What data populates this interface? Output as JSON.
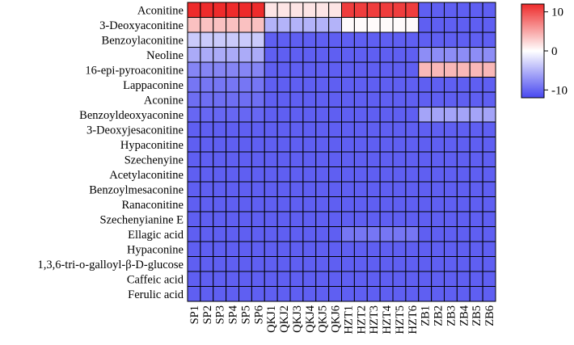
{
  "chart_data": {
    "type": "heatmap",
    "rows": [
      "Aconitine",
      "3-Deoxyaconitine",
      "Benzoylaconitine",
      "Neoline",
      "16-epi-pyroaconitine",
      "Lappaconine",
      "Aconine",
      "Benzoyldeoxyaconine",
      "3-Deoxyjesaconitine",
      "Hypaconitine",
      "Szechenyine",
      "Acetylaconitine",
      "Benzoylmesaconine",
      "Ranaconitine",
      "Szechenyianine E",
      "Ellagic acid",
      "Hypaconine",
      "1,3,6-tri-o-galloyl-β-D-glucose",
      "Caffeic acid",
      "Ferulic acid"
    ],
    "columns": [
      "SP1",
      "SP2",
      "SP3",
      "SP4",
      "SP5",
      "SP6",
      "QKJ1",
      "QKJ2",
      "QKJ3",
      "QKJ4",
      "QKJ5",
      "QKJ6",
      "HZT1",
      "HZT2",
      "HZT3",
      "HZT4",
      "HZT5",
      "HZT6",
      "ZB1",
      "ZB2",
      "ZB3",
      "ZB4",
      "ZB5",
      "ZB6"
    ],
    "values": [
      [
        12,
        12,
        12,
        12,
        12,
        12,
        1.5,
        1.5,
        1.5,
        1.5,
        1.5,
        1.5,
        11,
        11,
        11,
        11,
        11,
        11,
        -10.5,
        -10.5,
        -10.5,
        -10.5,
        -10.5,
        -10.5
      ],
      [
        3.5,
        3.5,
        3.5,
        3.5,
        3.5,
        3.5,
        -5,
        -5,
        -5,
        -5,
        -5,
        -5,
        0.2,
        0.2,
        0.2,
        0.2,
        0.2,
        0.2,
        -10.5,
        -10.5,
        -10.5,
        -10.5,
        -10.5,
        -10.5
      ],
      [
        -3.5,
        -3.5,
        -3.5,
        -3.5,
        -3.5,
        -3.5,
        -10.5,
        -10.5,
        -10.5,
        -10.5,
        -10.5,
        -10.5,
        -10.5,
        -10.5,
        -10.5,
        -10.5,
        -10.5,
        -10.5,
        -10.5,
        -10.5,
        -10.5,
        -10.5,
        -10.5,
        -10.5
      ],
      [
        -5.5,
        -5.5,
        -5.5,
        -5.5,
        -5.5,
        -5.5,
        -10.5,
        -10.5,
        -10.5,
        -10.5,
        -10.5,
        -10.5,
        -10.5,
        -10.5,
        -10.5,
        -10.5,
        -10.5,
        -10.5,
        -7.5,
        -7.5,
        -7.5,
        -7.5,
        -7.5,
        -7.5
      ],
      [
        -8,
        -8,
        -8,
        -8,
        -8,
        -8,
        -10.5,
        -10.5,
        -10.5,
        -10.5,
        -10.5,
        -10.5,
        -10.5,
        -10.5,
        -10.5,
        -10.5,
        -10.5,
        -10.5,
        4,
        4,
        4,
        4,
        4,
        4
      ],
      [
        -9,
        -9,
        -9,
        -9,
        -9,
        -9,
        -10.5,
        -10.5,
        -10.5,
        -10.5,
        -10.5,
        -10.5,
        -10.5,
        -10.5,
        -10.5,
        -10.5,
        -10.5,
        -10.5,
        -10.5,
        -10.5,
        -10.5,
        -10.5,
        -10.5,
        -10.5
      ],
      [
        -9.5,
        -9.5,
        -9.5,
        -9.5,
        -9.5,
        -9.5,
        -10.5,
        -10.5,
        -10.5,
        -10.5,
        -10.5,
        -10.5,
        -10.5,
        -10.5,
        -10.5,
        -10.5,
        -10.5,
        -10.5,
        -10.5,
        -10.5,
        -10.5,
        -10.5,
        -10.5,
        -10.5
      ],
      [
        -10,
        -10,
        -10,
        -10,
        -10,
        -10,
        -10.5,
        -10.5,
        -10.5,
        -10.5,
        -10.5,
        -10.5,
        -10.5,
        -10.5,
        -10.5,
        -10.5,
        -10.5,
        -10.5,
        -6,
        -6,
        -6,
        -6,
        -6,
        -6
      ],
      [
        -10.5,
        -10.5,
        -10.5,
        -10.5,
        -10.5,
        -10.5,
        -10.5,
        -10.5,
        -10.5,
        -10.5,
        -10.5,
        -10.5,
        -10.5,
        -10.5,
        -10.5,
        -10.5,
        -10.5,
        -10.5,
        -10.5,
        -10.5,
        -10.5,
        -10.5,
        -10.5,
        -10.5
      ],
      [
        -10.5,
        -10.5,
        -10.5,
        -10.5,
        -10.5,
        -10.5,
        -10.5,
        -10.5,
        -10.5,
        -10.5,
        -10.5,
        -10.5,
        -10.5,
        -10.5,
        -10.5,
        -10.5,
        -10.5,
        -10.5,
        -10.5,
        -10.5,
        -10.5,
        -10.5,
        -10.5,
        -10.5
      ],
      [
        -10.5,
        -10.5,
        -10.5,
        -10.5,
        -10.5,
        -10.5,
        -10.5,
        -10.5,
        -10.5,
        -10.5,
        -10.5,
        -10.5,
        -10.5,
        -10.5,
        -10.5,
        -10.5,
        -10.5,
        -10.5,
        -10.5,
        -10.5,
        -10.5,
        -10.5,
        -10.5,
        -10.5
      ],
      [
        -10.5,
        -10.5,
        -10.5,
        -10.5,
        -10.5,
        -10.5,
        -10.5,
        -10.5,
        -10.5,
        -10.5,
        -10.5,
        -10.5,
        -10.5,
        -10.5,
        -10.5,
        -10.5,
        -10.5,
        -10.5,
        -10.5,
        -10.5,
        -10.5,
        -10.5,
        -10.5,
        -10.5
      ],
      [
        -10.5,
        -10.5,
        -10.5,
        -10.5,
        -10.5,
        -10.5,
        -10.5,
        -10.5,
        -10.5,
        -10.5,
        -10.5,
        -10.5,
        -10.5,
        -10.5,
        -10.5,
        -10.5,
        -10.5,
        -10.5,
        -10.5,
        -10.5,
        -10.5,
        -10.5,
        -10.5,
        -10.5
      ],
      [
        -10.5,
        -10.5,
        -10.5,
        -10.5,
        -10.5,
        -10.5,
        -10.5,
        -10.5,
        -10.5,
        -10.5,
        -10.5,
        -10.5,
        -10.5,
        -10.5,
        -10.5,
        -10.5,
        -10.5,
        -10.5,
        -10.5,
        -10.5,
        -10.5,
        -10.5,
        -10.5,
        -10.5
      ],
      [
        -10.5,
        -10.5,
        -10.5,
        -10.5,
        -10.5,
        -10.5,
        -10.5,
        -10.5,
        -10.5,
        -10.5,
        -10.5,
        -10.5,
        -10.5,
        -10.5,
        -10.5,
        -10.5,
        -10.5,
        -10.5,
        -10.5,
        -10.5,
        -10.5,
        -10.5,
        -10.5,
        -10.5
      ],
      [
        -10.5,
        -10.5,
        -10.5,
        -10.5,
        -10.5,
        -10.5,
        -10.5,
        -10.5,
        -10.5,
        -10.5,
        -10.5,
        -10.5,
        -9,
        -9,
        -9,
        -9,
        -9,
        -9,
        -10.5,
        -10.5,
        -10.5,
        -10.5,
        -10.5,
        -10.5
      ],
      [
        -10.5,
        -10.5,
        -10.5,
        -10.5,
        -10.5,
        -10.5,
        -10.5,
        -10.5,
        -10.5,
        -10.5,
        -10.5,
        -10.5,
        -10.5,
        -10.5,
        -10.5,
        -10.5,
        -10.5,
        -10.5,
        -10.5,
        -10.5,
        -10.5,
        -10.5,
        -10.5,
        -10.5
      ],
      [
        -10.5,
        -10.5,
        -10.5,
        -10.5,
        -10.5,
        -10.5,
        -10.5,
        -10.5,
        -10.5,
        -10.5,
        -10.5,
        -10.5,
        -10.5,
        -10.5,
        -10.5,
        -10.5,
        -10.5,
        -10.5,
        -10.5,
        -10.5,
        -10.5,
        -10.5,
        -10.5,
        -10.5
      ],
      [
        -10.5,
        -10.5,
        -10.5,
        -10.5,
        -10.5,
        -10.5,
        -10.5,
        -10.5,
        -10.5,
        -10.5,
        -10.5,
        -10.5,
        -10.5,
        -10.5,
        -10.5,
        -10.5,
        -10.5,
        -10.5,
        -10.5,
        -10.5,
        -10.5,
        -10.5,
        -10.5,
        -10.5
      ],
      [
        -10.5,
        -10.5,
        -10.5,
        -10.5,
        -10.5,
        -10.5,
        -10.5,
        -10.5,
        -10.5,
        -10.5,
        -10.5,
        -10.5,
        -10.5,
        -10.5,
        -10.5,
        -10.5,
        -10.5,
        -10.5,
        -10.5,
        -10.5,
        -10.5,
        -10.5,
        -10.5,
        -10.5
      ]
    ],
    "colorscale": {
      "min": -12,
      "max": 12,
      "low_color": "#4848f0",
      "mid_color": "#ffffff",
      "high_color": "#ee2b2b",
      "ticks": [
        10,
        0,
        -10
      ],
      "tick_labels": [
        "10",
        "0",
        "-10"
      ]
    },
    "title": "",
    "xlabel": "",
    "ylabel": "",
    "grid": true,
    "legend_position": "top-right"
  }
}
